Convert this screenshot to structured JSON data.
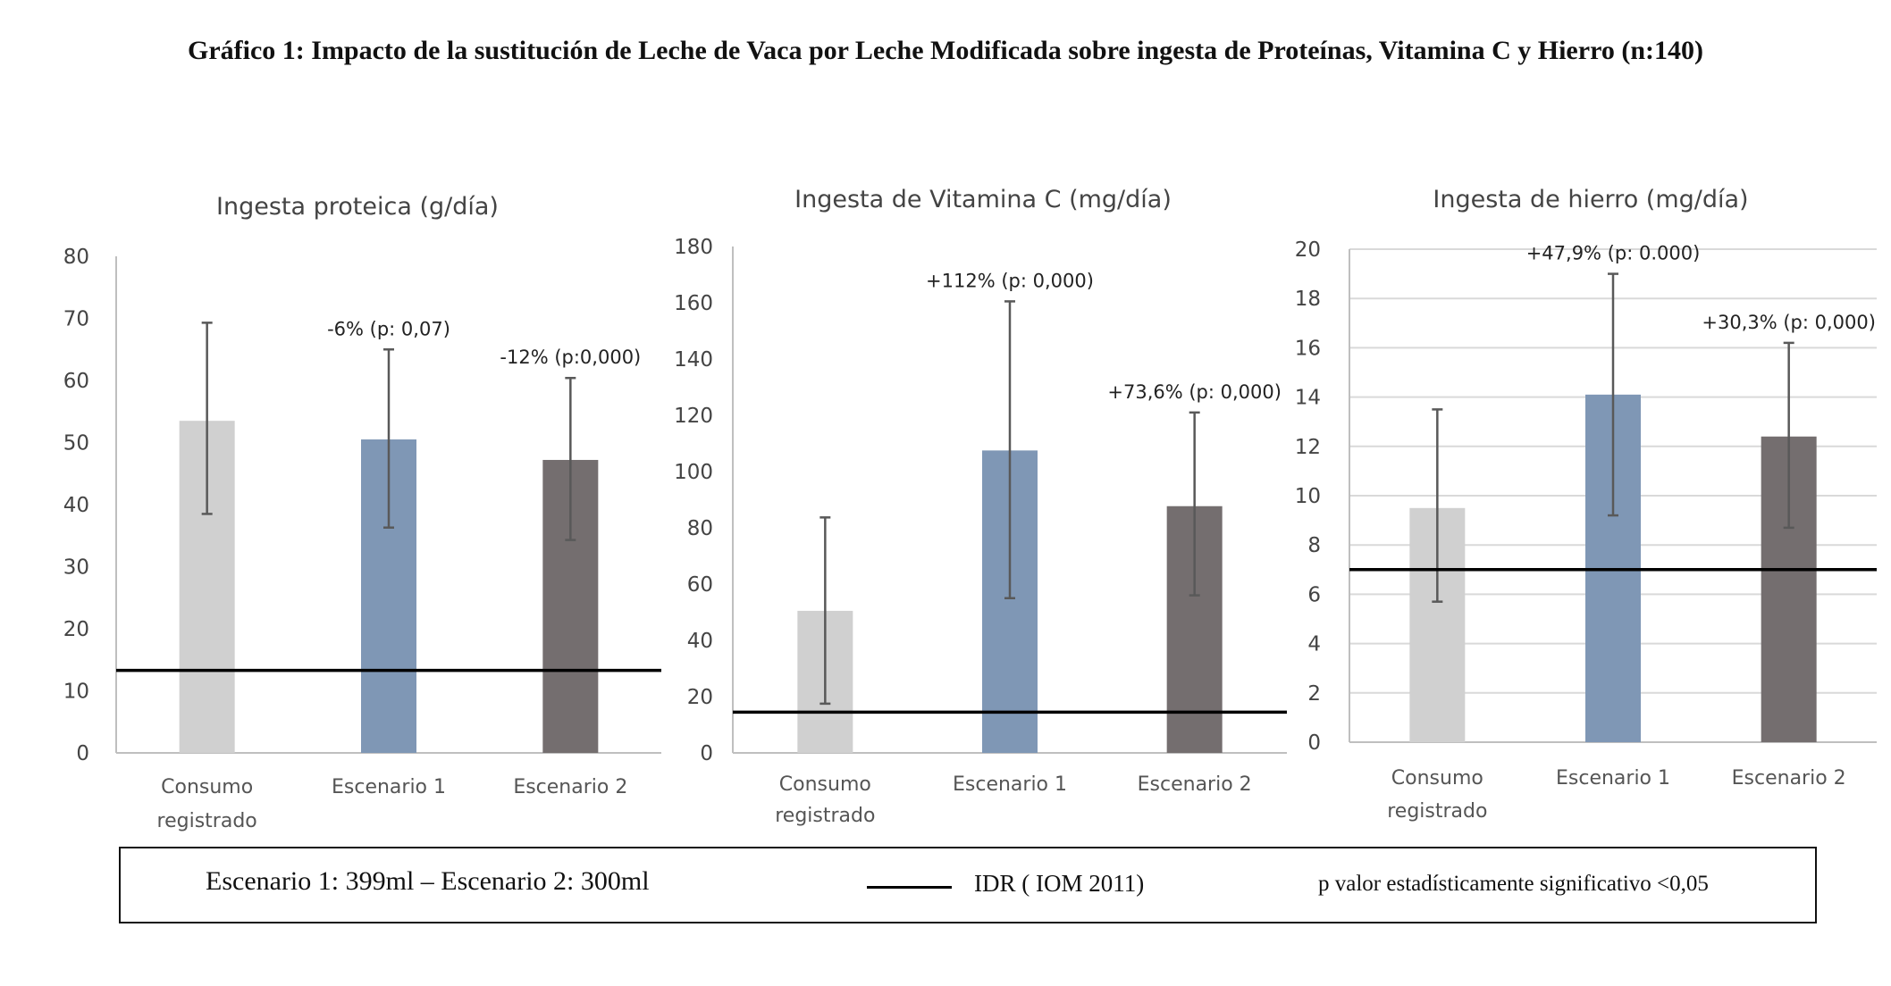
{
  "title": "Gráfico 1: Impacto de la sustitución de Leche de Vaca por Leche Modificada sobre ingesta de Proteínas, Vitamina C y Hierro (n:140)",
  "colors": {
    "consumo": "#d0d0d0",
    "escenario1": "#7f97b5",
    "escenario2": "#746e6f",
    "error_bar": "#595959",
    "idr_line": "#000000",
    "grid": "#d9d9d9",
    "axis": "#bfbfbf"
  },
  "legend": {
    "scenarios": "Escenario 1: 399ml – Escenario 2: 300ml",
    "idr": "IDR ( IOM 2011)",
    "p_note": "p valor estadísticamente significativo <0,05"
  },
  "chart_data": [
    {
      "type": "bar",
      "title": "Ingesta proteica (g/día)",
      "categories": [
        [
          "Consumo",
          "registrado"
        ],
        [
          "Escenario 1"
        ],
        [
          "Escenario 2"
        ]
      ],
      "values": [
        53.5,
        50.5,
        47.2
      ],
      "error_low": [
        38.5,
        36.3,
        34.3
      ],
      "error_high": [
        69.3,
        65.0,
        60.4
      ],
      "data_labels": [
        "",
        "-6% (p: 0,07)",
        "-12% (p:0,000)"
      ],
      "idr": 13.3,
      "ylim": [
        0,
        80
      ],
      "yticks": [
        0,
        10,
        20,
        30,
        40,
        50,
        60,
        70,
        80
      ],
      "grid": false
    },
    {
      "type": "bar",
      "title": "Ingesta de Vitamina C (mg/día)",
      "categories": [
        [
          "Consumo",
          "registrado"
        ],
        [
          "Escenario 1"
        ],
        [
          "Escenario 2"
        ]
      ],
      "values": [
        50.5,
        107.5,
        87.7
      ],
      "error_low": [
        17.5,
        55.0,
        56.0
      ],
      "error_high": [
        83.7,
        160.5,
        121.0
      ],
      "data_labels": [
        "",
        "+112% (p: 0,000)",
        "+73,6% (p: 0,000)"
      ],
      "idr": 14.5,
      "ylim": [
        0,
        180
      ],
      "yticks": [
        0,
        20,
        40,
        60,
        80,
        100,
        120,
        140,
        160,
        180
      ],
      "grid": false
    },
    {
      "type": "bar",
      "title": "Ingesta de hierro (mg/día)",
      "categories": [
        [
          "Consumo",
          "registrado"
        ],
        [
          "Escenario 1"
        ],
        [
          "Escenario 2"
        ]
      ],
      "values": [
        9.5,
        14.1,
        12.4
      ],
      "error_low": [
        5.7,
        9.2,
        8.7
      ],
      "error_high": [
        13.5,
        19.0,
        16.2
      ],
      "data_labels": [
        "",
        "+47,9% (p: 0.000)",
        "+30,3% (p: 0,000)"
      ],
      "idr": 7.0,
      "ylim": [
        0,
        20
      ],
      "yticks": [
        0,
        2,
        4,
        6,
        8,
        10,
        12,
        14,
        16,
        18,
        20
      ],
      "grid": true
    }
  ]
}
